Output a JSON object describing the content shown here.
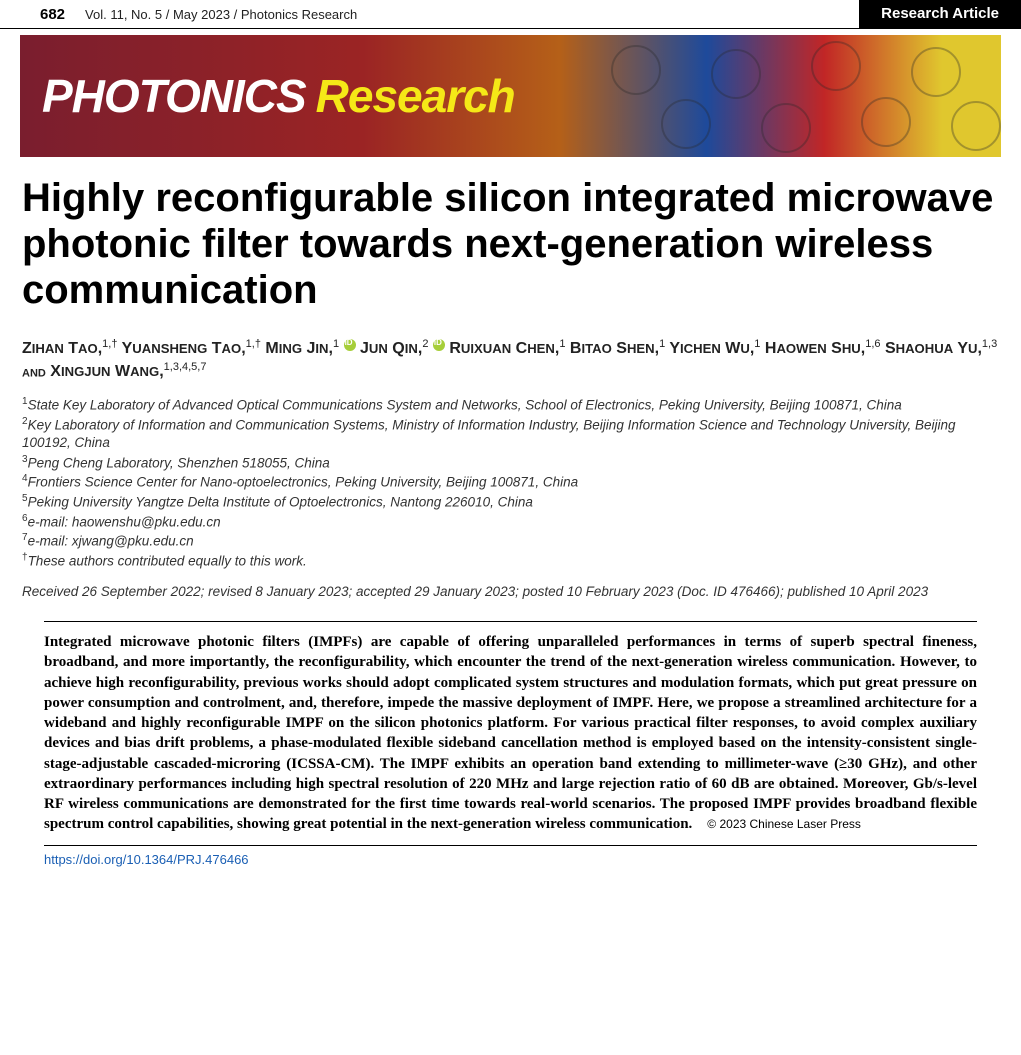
{
  "header": {
    "page_number": "682",
    "issue": "Vol. 11, No. 5 / May 2023 / Photonics Research",
    "article_type": "Research Article"
  },
  "banner": {
    "word1": "PHOTONICS",
    "word2": "Research",
    "gradient_colors": [
      "#7a1e2e",
      "#9b2424",
      "#b56018",
      "#1e4a9b",
      "#c12626",
      "#e0c72e"
    ]
  },
  "title": "Highly reconfigurable silicon integrated microwave photonic filter towards next-generation wireless communication",
  "authors": [
    {
      "name": "Zihan Tao",
      "aff": "1,†"
    },
    {
      "name": "Yuansheng Tao",
      "aff": "1,†"
    },
    {
      "name": "Ming Jin",
      "aff": "1",
      "orcid": true
    },
    {
      "name": "Jun Qin",
      "aff": "2",
      "orcid": true
    },
    {
      "name": "Ruixuan Chen",
      "aff": "1"
    },
    {
      "name": "Bitao Shen",
      "aff": "1"
    },
    {
      "name": "Yichen Wu",
      "aff": "1"
    },
    {
      "name": "Haowen Shu",
      "aff": "1,6"
    },
    {
      "name": "Shaohua Yu",
      "aff": "1,3"
    },
    {
      "name": "Xingjun Wang",
      "aff": "1,3,4,5,7",
      "and": true
    }
  ],
  "affiliations": [
    "State Key Laboratory of Advanced Optical Communications System and Networks, School of Electronics, Peking University, Beijing 100871, China",
    "Key Laboratory of Information and Communication Systems, Ministry of Information Industry, Beijing Information Science and Technology University, Beijing 100192, China",
    "Peng Cheng Laboratory, Shenzhen 518055, China",
    "Frontiers Science Center for Nano-optoelectronics, Peking University, Beijing 100871, China",
    "Peking University Yangtze Delta Institute of Optoelectronics, Nantong 226010, China",
    "e-mail: haowenshu@pku.edu.cn",
    "e-mail: xjwang@pku.edu.cn"
  ],
  "equal_contrib": "These authors contributed equally to this work.",
  "dates": "Received 26 September 2022; revised 8 January 2023; accepted 29 January 2023; posted 10 February 2023 (Doc. ID 476466); published 10 April 2023",
  "abstract": "Integrated microwave photonic filters (IMPFs) are capable of offering unparalleled performances in terms of superb spectral fineness, broadband, and more importantly, the reconfigurability, which encounter the trend of the next-generation wireless communication. However, to achieve high reconfigurability, previous works should adopt complicated system structures and modulation formats, which put great pressure on power consumption and controlment, and, therefore, impede the massive deployment of IMPF. Here, we propose a streamlined architecture for a wideband and highly reconfigurable IMPF on the silicon photonics platform. For various practical filter responses, to avoid complex auxiliary devices and bias drift problems, a phase-modulated flexible sideband cancellation method is employed based on the intensity-consistent single-stage-adjustable cascaded-microring (ICSSA-CM). The IMPF exhibits an operation band extending to millimeter-wave (≥30 GHz), and other extraordinary performances including high spectral resolution of 220 MHz and large rejection ratio of 60 dB are obtained. Moreover, Gb/s-level RF wireless communications are demonstrated for the first time towards real-world scenarios. The proposed IMPF provides broadband flexible spectrum control capabilities, showing great potential in the next-generation wireless communication.",
  "copyright": "© 2023 Chinese Laser Press",
  "doi": "https://doi.org/10.1364/PRJ.476466",
  "colors": {
    "orcid": "#a6ce39",
    "link": "#1a5fb4",
    "research_banner_yellow": "#f5e817"
  }
}
